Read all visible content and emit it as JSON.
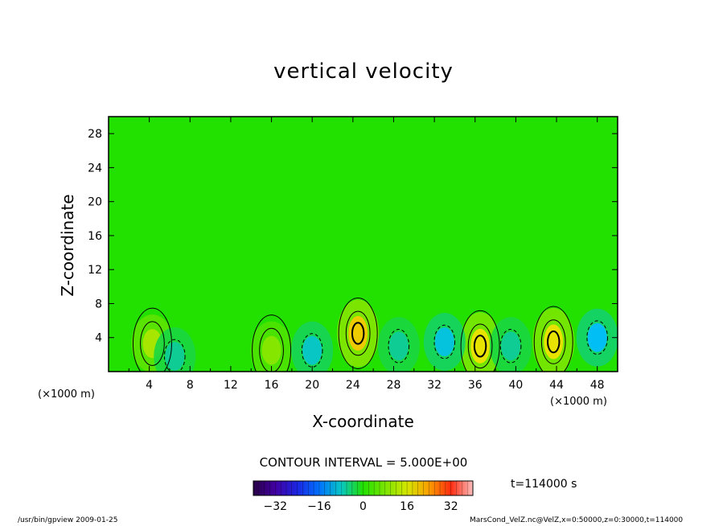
{
  "chart_data": {
    "type": "heatmap",
    "title": "vertical velocity",
    "xlabel": "X-coordinate",
    "ylabel": "Z-coordinate",
    "x_unit": "(×1000 m)",
    "xlim": [
      0,
      50
    ],
    "ylim": [
      0,
      30
    ],
    "x_ticks": [
      4,
      8,
      12,
      16,
      20,
      24,
      28,
      32,
      36,
      40,
      44,
      48
    ],
    "y_ticks": [
      4,
      8,
      12,
      16,
      20,
      24,
      28
    ],
    "contour_interval": "CONTOUR INTERVAL = 5.000E+00",
    "colorbar": {
      "ticks": [
        -32,
        -16,
        0,
        16,
        32
      ],
      "range": [
        -40,
        40
      ]
    },
    "time_label": "t=114000 s",
    "updraft_centers": [
      {
        "x": 4.3,
        "z": 3.3,
        "w": 12
      },
      {
        "x": 16.0,
        "z": 2.5,
        "w": 9
      },
      {
        "x": 24.5,
        "z": 4.5,
        "w": 20
      },
      {
        "x": 36.5,
        "z": 3.0,
        "w": 18
      },
      {
        "x": 43.7,
        "z": 3.5,
        "w": 18
      }
    ],
    "downdraft_centers": [
      {
        "x": 6.5,
        "z": 1.8,
        "w": -6
      },
      {
        "x": 20.0,
        "z": 2.5,
        "w": -8
      },
      {
        "x": 28.5,
        "z": 3.0,
        "w": -6
      },
      {
        "x": 33.0,
        "z": 3.5,
        "w": -9
      },
      {
        "x": 39.5,
        "z": 3.0,
        "w": -6
      },
      {
        "x": 48.0,
        "z": 4.0,
        "w": -10
      }
    ]
  },
  "footer": {
    "left": "/usr/bin/gpview  2009-01-25",
    "right": "MarsCond_VelZ.nc@VelZ,x=0:50000,z=0:30000,t=114000"
  },
  "colors": {
    "background_field": "#22e000",
    "frame": "#000000"
  }
}
